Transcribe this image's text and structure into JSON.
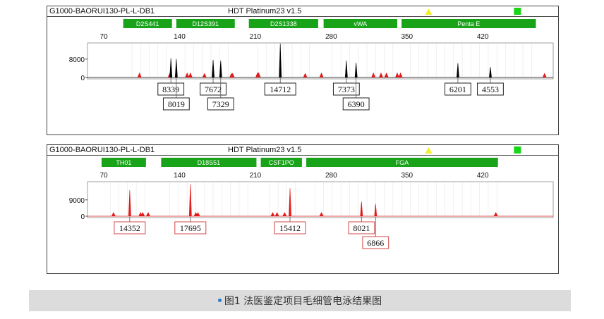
{
  "caption": {
    "text": "图1  法医鉴定项目毛细管电泳结果图",
    "bullet_color": "#2a79c9"
  },
  "colors": {
    "panel_green": "#19a319",
    "marker_yellow": "#f2ee2a",
    "marker_green": "#19d419",
    "black_trace": "#000000",
    "red_trace": "#e01a1a",
    "red_label_border": "#d24a4a",
    "black_label_border": "#222222"
  },
  "chart_data": [
    {
      "type": "line",
      "header": {
        "sample": "G1000-BAORUI130-PL-L-DB1",
        "kit": "HDT  Platinum23  v1.5"
      },
      "trace_color": "black",
      "xlim": [
        55,
        485
      ],
      "x_ticks": [
        70,
        140,
        210,
        280,
        350,
        420
      ],
      "ylim": [
        0,
        15000
      ],
      "y_ticks": [
        0,
        8000
      ],
      "loci": [
        {
          "name": "D2S441",
          "start": 88,
          "end": 133
        },
        {
          "name": "D12S391",
          "start": 137,
          "end": 191
        },
        {
          "name": "D2S1338",
          "start": 204,
          "end": 268
        },
        {
          "name": "vWA",
          "start": 273,
          "end": 341
        },
        {
          "name": "Penta E",
          "start": 345,
          "end": 469
        }
      ],
      "peaks": [
        {
          "x": 132,
          "height": 8339,
          "label_row": 0
        },
        {
          "x": 137,
          "height": 8019,
          "label_row": 1
        },
        {
          "x": 171,
          "height": 7672,
          "label_row": 0
        },
        {
          "x": 178,
          "height": 7329,
          "label_row": 1
        },
        {
          "x": 233,
          "height": 14712,
          "label_row": 0
        },
        {
          "x": 294,
          "height": 7373,
          "label_row": 0
        },
        {
          "x": 303,
          "height": 6390,
          "label_row": 1
        },
        {
          "x": 397,
          "height": 6201,
          "label_row": 0
        },
        {
          "x": 427,
          "height": 4553,
          "label_row": 0
        }
      ],
      "markers": [
        {
          "x": 103,
          "height": 2200
        },
        {
          "x": 131,
          "height": 2000
        },
        {
          "x": 147,
          "height": 2200
        },
        {
          "x": 150,
          "height": 2200
        },
        {
          "x": 163,
          "height": 2000
        },
        {
          "x": 188,
          "height": 2000
        },
        {
          "x": 189,
          "height": 2000
        },
        {
          "x": 212,
          "height": 2300
        },
        {
          "x": 213,
          "height": 2300
        },
        {
          "x": 256,
          "height": 2000
        },
        {
          "x": 271,
          "height": 2200
        },
        {
          "x": 319,
          "height": 2200
        },
        {
          "x": 326,
          "height": 2200
        },
        {
          "x": 331,
          "height": 2200
        },
        {
          "x": 341,
          "height": 2200
        },
        {
          "x": 344,
          "height": 2200
        },
        {
          "x": 477,
          "height": 2000
        }
      ],
      "status_markers": [
        {
          "x": 370,
          "kind": "yellow-triangle"
        },
        {
          "x": 452,
          "kind": "green-square"
        }
      ]
    },
    {
      "type": "line",
      "header": {
        "sample": "G1000-BAORUI130-PL-L-DB1",
        "kit": "HDT  Platinum23  v1.5"
      },
      "trace_color": "red",
      "xlim": [
        55,
        485
      ],
      "x_ticks": [
        70,
        140,
        210,
        280,
        350,
        420
      ],
      "ylim": [
        0,
        19000
      ],
      "y_ticks": [
        0,
        9000
      ],
      "loci": [
        {
          "name": "TH01",
          "start": 68,
          "end": 109
        },
        {
          "name": "D18S51",
          "start": 123,
          "end": 211
        },
        {
          "name": "CSF1PO",
          "start": 215,
          "end": 253
        },
        {
          "name": "FGA",
          "start": 257,
          "end": 434
        }
      ],
      "peaks": [
        {
          "x": 94,
          "height": 14352,
          "label_row": 0
        },
        {
          "x": 150,
          "height": 17695,
          "label_row": 0
        },
        {
          "x": 242,
          "height": 15412,
          "label_row": 0
        },
        {
          "x": 308,
          "height": 8021,
          "label_row": 0
        },
        {
          "x": 321,
          "height": 6866,
          "label_row": 1
        }
      ],
      "markers": [
        {
          "x": 79,
          "height": 2300
        },
        {
          "x": 104,
          "height": 2300
        },
        {
          "x": 106,
          "height": 2300
        },
        {
          "x": 111,
          "height": 2300
        },
        {
          "x": 155,
          "height": 2300
        },
        {
          "x": 157,
          "height": 2300
        },
        {
          "x": 226,
          "height": 2300
        },
        {
          "x": 230,
          "height": 2300
        },
        {
          "x": 237,
          "height": 2300
        },
        {
          "x": 271,
          "height": 2300
        },
        {
          "x": 432,
          "height": 2300
        }
      ],
      "status_markers": [
        {
          "x": 370,
          "kind": "yellow-triangle"
        },
        {
          "x": 452,
          "kind": "green-square"
        }
      ]
    }
  ]
}
